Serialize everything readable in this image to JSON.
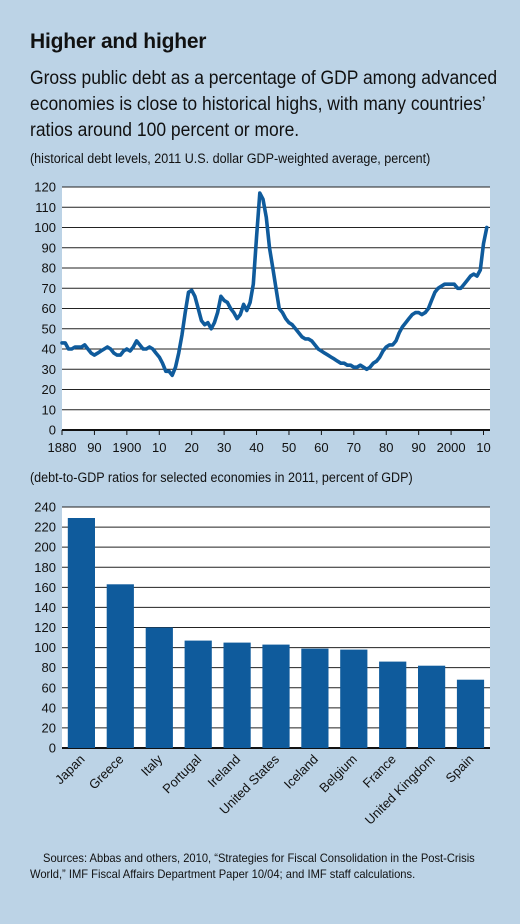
{
  "title": "Higher and higher",
  "subtitle": "Gross public debt as a percentage of GDP among advanced economies is close to historical highs, with many countries’ ratios around 100 percent or more.",
  "colors": {
    "background": "#bcd3e6",
    "plot_bg": "#ffffff",
    "series": "#0f5b9c"
  },
  "chart_data": [
    {
      "type": "line",
      "note": "(historical debt levels, 2011 U.S. dollar GDP-weighted average, percent)",
      "x_tick_labels": [
        "1880",
        "90",
        "1900",
        "10",
        "20",
        "30",
        "40",
        "50",
        "60",
        "70",
        "80",
        "90",
        "2000",
        "10"
      ],
      "x_tick_years": [
        1880,
        1890,
        1900,
        1910,
        1920,
        1930,
        1940,
        1950,
        1960,
        1970,
        1980,
        1990,
        2000,
        2010
      ],
      "xlim": [
        1880,
        2012
      ],
      "ylim": [
        0,
        120
      ],
      "y_ticks": [
        0,
        10,
        20,
        30,
        40,
        50,
        60,
        70,
        80,
        90,
        100,
        110,
        120
      ],
      "grid": true,
      "series": [
        {
          "x": [
            1880,
            1881,
            1882,
            1883,
            1884,
            1885,
            1886,
            1887,
            1888,
            1889,
            1890,
            1891,
            1892,
            1893,
            1894,
            1895,
            1896,
            1897,
            1898,
            1899,
            1900,
            1901,
            1902,
            1903,
            1904,
            1905,
            1906,
            1907,
            1908,
            1909,
            1910,
            1911,
            1912,
            1913,
            1914,
            1915,
            1916,
            1917,
            1918,
            1919,
            1920,
            1921,
            1922,
            1923,
            1924,
            1925,
            1926,
            1927,
            1928,
            1929,
            1930,
            1931,
            1932,
            1933,
            1934,
            1935,
            1936,
            1937,
            1938,
            1939,
            1940,
            1941,
            1942,
            1943,
            1944,
            1945,
            1946,
            1947,
            1948,
            1949,
            1950,
            1951,
            1952,
            1953,
            1954,
            1955,
            1956,
            1957,
            1958,
            1959,
            1960,
            1961,
            1962,
            1963,
            1964,
            1965,
            1966,
            1967,
            1968,
            1969,
            1970,
            1971,
            1972,
            1973,
            1974,
            1975,
            1976,
            1977,
            1978,
            1979,
            1980,
            1981,
            1982,
            1983,
            1984,
            1985,
            1986,
            1987,
            1988,
            1989,
            1990,
            1991,
            1992,
            1993,
            1994,
            1995,
            1996,
            1997,
            1998,
            1999,
            2000,
            2001,
            2002,
            2003,
            2004,
            2005,
            2006,
            2007,
            2008,
            2009,
            2010,
            2011
          ],
          "values": [
            43,
            43,
            40,
            40,
            41,
            41,
            41,
            42,
            40,
            38,
            37,
            38,
            39,
            40,
            41,
            40,
            38,
            37,
            37,
            39,
            40,
            39,
            41,
            44,
            42,
            40,
            40,
            41,
            40,
            38,
            36,
            33,
            29,
            29,
            27,
            31,
            38,
            47,
            58,
            68,
            69,
            66,
            60,
            54,
            52,
            53,
            50,
            53,
            58,
            66,
            64,
            63,
            60,
            58,
            55,
            57,
            62,
            59,
            63,
            72,
            95,
            117,
            114,
            105,
            90,
            80,
            70,
            60,
            58,
            55,
            53,
            52,
            50,
            48,
            46,
            45,
            45,
            44,
            42,
            40,
            39,
            38,
            37,
            36,
            35,
            34,
            33,
            33,
            32,
            32,
            31,
            31,
            32,
            31,
            30,
            31,
            33,
            34,
            36,
            39,
            41,
            42,
            42,
            44,
            48,
            51,
            53,
            55,
            57,
            58,
            58,
            57,
            58,
            60,
            64,
            68,
            70,
            71,
            72,
            72,
            72,
            72,
            70,
            70,
            72,
            74,
            76,
            77,
            76,
            79,
            92,
            100
          ]
        }
      ]
    },
    {
      "type": "bar",
      "note": "(debt-to-GDP ratios for selected economies in 2011, percent of GDP)",
      "categories": [
        "Japan",
        "Greece",
        "Italy",
        "Portugal",
        "Ireland",
        "United States",
        "Iceland",
        "Belgium",
        "France",
        "United Kingdom",
        "Spain"
      ],
      "values": [
        229,
        163,
        120,
        107,
        105,
        103,
        99,
        98,
        86,
        82,
        68
      ],
      "ylim": [
        0,
        240
      ],
      "y_ticks": [
        0,
        20,
        40,
        60,
        80,
        100,
        120,
        140,
        160,
        180,
        200,
        220,
        240
      ],
      "grid": true
    }
  ],
  "source": "Sources: Abbas and others, 2010, “Strategies for Fiscal Consolidation in the Post-Crisis World,” IMF Fiscal Affairs Department Paper 10/04; and IMF staff calculations."
}
